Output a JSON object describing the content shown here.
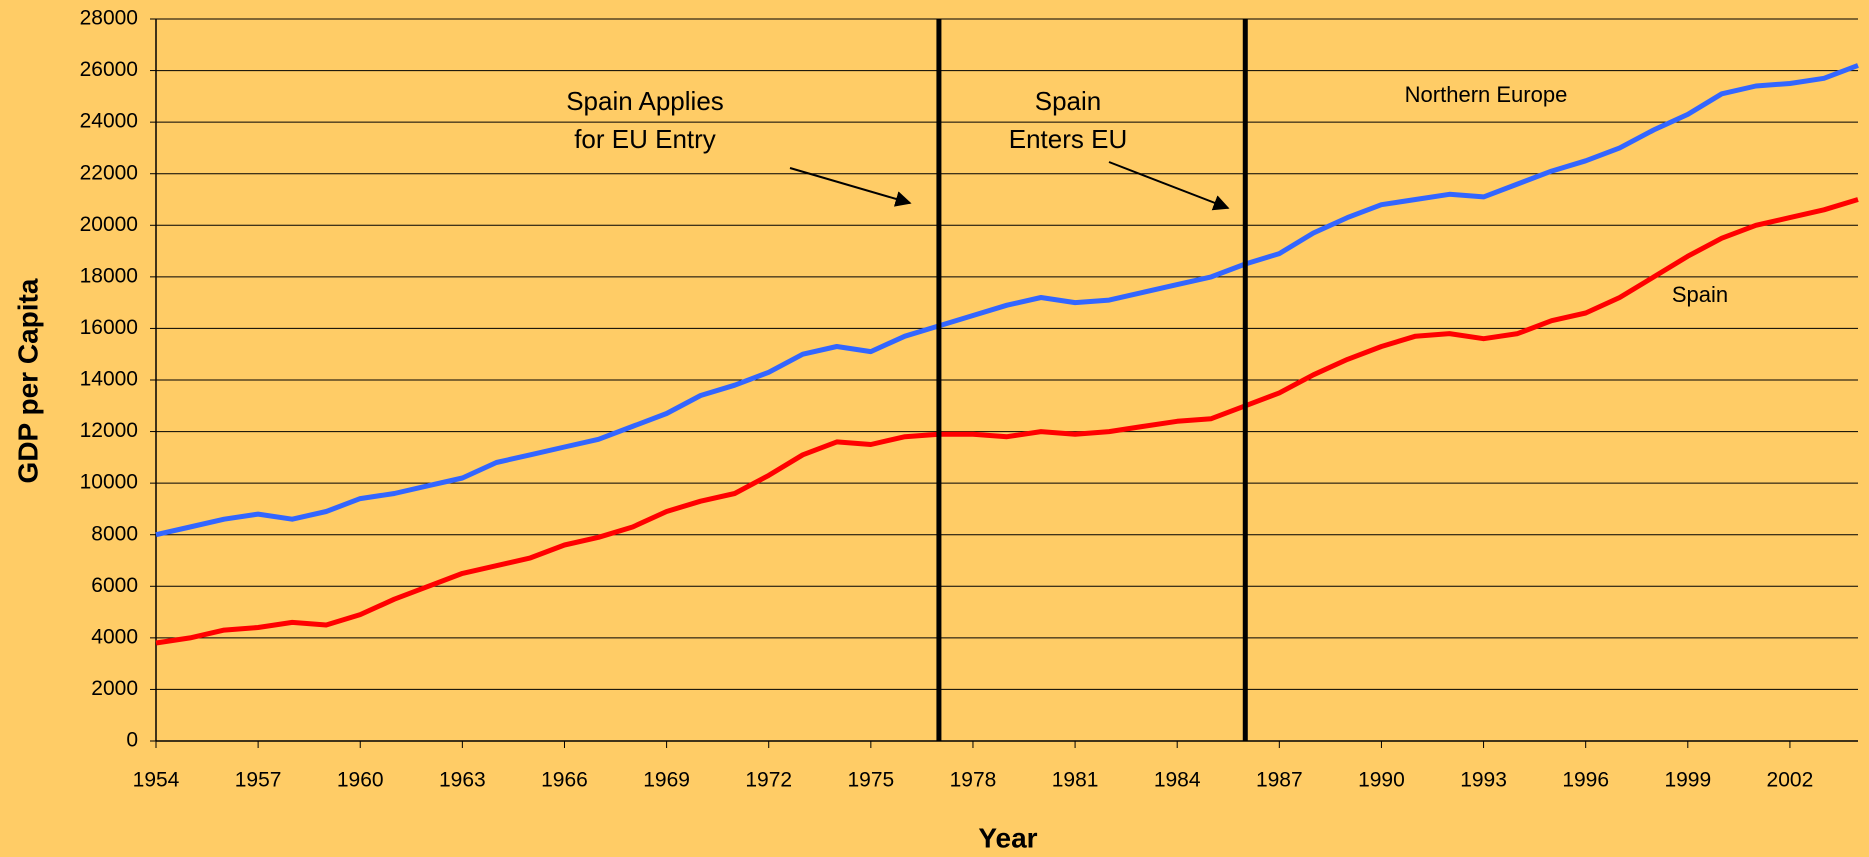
{
  "chart_data": {
    "type": "line",
    "xlabel": "Year",
    "ylabel": "GDP per Capita",
    "x": [
      1954,
      1955,
      1956,
      1957,
      1958,
      1959,
      1960,
      1961,
      1962,
      1963,
      1964,
      1965,
      1966,
      1967,
      1968,
      1969,
      1970,
      1971,
      1972,
      1973,
      1974,
      1975,
      1976,
      1977,
      1978,
      1979,
      1980,
      1981,
      1982,
      1983,
      1984,
      1985,
      1986,
      1987,
      1988,
      1989,
      1990,
      1991,
      1992,
      1993,
      1994,
      1995,
      1996,
      1997,
      1998,
      1999,
      2000,
      2001,
      2002,
      2003,
      2004
    ],
    "series": [
      {
        "name": "Northern Europe",
        "color": "#3366FF",
        "values": [
          8000,
          8300,
          8600,
          8800,
          8600,
          8900,
          9400,
          9600,
          9900,
          10200,
          10800,
          11100,
          11400,
          11700,
          12200,
          12700,
          13400,
          13800,
          14300,
          15000,
          15300,
          15100,
          15700,
          16100,
          16500,
          16900,
          17200,
          17000,
          17100,
          17400,
          17700,
          18000,
          18500,
          18900,
          19700,
          20300,
          20800,
          21000,
          21200,
          21100,
          21600,
          22100,
          22500,
          23000,
          23700,
          24300,
          25100,
          25400,
          25500,
          25700,
          26200
        ]
      },
      {
        "name": "Spain",
        "color": "#FF0000",
        "values": [
          3800,
          4000,
          4300,
          4400,
          4600,
          4500,
          4900,
          5500,
          6000,
          6500,
          6800,
          7100,
          7600,
          7900,
          8300,
          8900,
          9300,
          9600,
          10300,
          11100,
          11600,
          11500,
          11800,
          11900,
          11900,
          11800,
          12000,
          11900,
          12000,
          12200,
          12400,
          12500,
          13000,
          13500,
          14200,
          14800,
          15300,
          15700,
          15800,
          15600,
          15800,
          16300,
          16600,
          17200,
          18000,
          18800,
          19500,
          20000,
          20300,
          20600,
          21000
        ]
      }
    ],
    "vlines": [
      1977,
      1986
    ],
    "annotations": [
      [
        "Spain Applies",
        "for EU Entry"
      ],
      [
        "Spain",
        "Enters EU"
      ]
    ],
    "xlim": [
      1954,
      2004
    ],
    "xticks": [
      1954,
      1957,
      1960,
      1963,
      1966,
      1969,
      1972,
      1975,
      1978,
      1981,
      1984,
      1987,
      1990,
      1993,
      1996,
      1999,
      2002
    ],
    "ylim": [
      0,
      28000
    ],
    "yticks": [
      0,
      2000,
      4000,
      6000,
      8000,
      10000,
      12000,
      14000,
      16000,
      18000,
      20000,
      22000,
      24000,
      26000,
      28000
    ],
    "grid": true
  }
}
